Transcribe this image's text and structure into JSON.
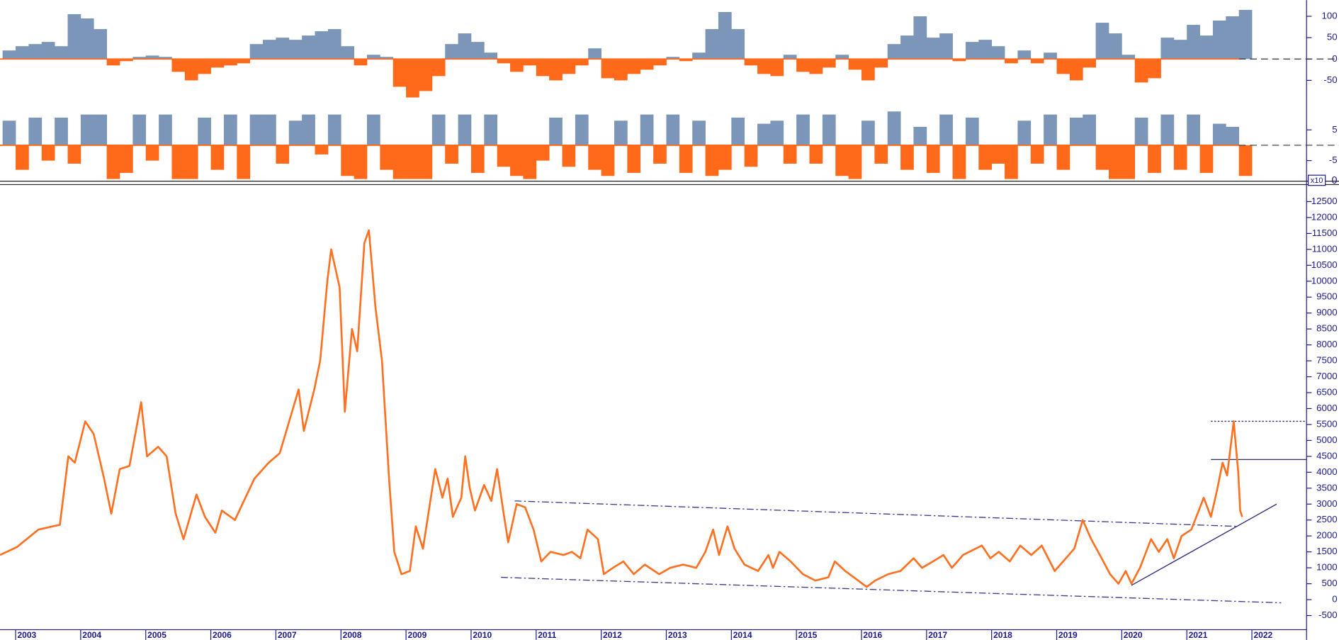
{
  "chart_data": [
    {
      "type": "bar",
      "xlim": [
        2002.76,
        2022.84
      ],
      "ylim": [
        -98,
        138
      ],
      "yticks": [
        100,
        50,
        0,
        -50
      ],
      "color_positive": "#7b96b8",
      "color_negative": "#ff6a1a",
      "x": [
        2002.8,
        2003,
        2003.2,
        2003.4,
        2003.6,
        2003.8,
        2004,
        2004.2,
        2004.4,
        2004.6,
        2004.8,
        2005,
        2005.2,
        2005.4,
        2005.6,
        2005.8,
        2006,
        2006.2,
        2006.4,
        2006.6,
        2006.8,
        2007,
        2007.2,
        2007.4,
        2007.6,
        2007.8,
        2008,
        2008.2,
        2008.4,
        2008.6,
        2008.8,
        2009,
        2009.2,
        2009.4,
        2009.6,
        2009.8,
        2010,
        2010.2,
        2010.4,
        2010.6,
        2010.8,
        2011,
        2011.2,
        2011.4,
        2011.6,
        2011.8,
        2012,
        2012.2,
        2012.4,
        2012.6,
        2012.8,
        2013,
        2013.2,
        2013.4,
        2013.6,
        2013.8,
        2014,
        2014.2,
        2014.4,
        2014.6,
        2014.8,
        2015,
        2015.2,
        2015.4,
        2015.6,
        2015.8,
        2016,
        2016.2,
        2016.4,
        2016.6,
        2016.8,
        2017,
        2017.2,
        2017.4,
        2017.6,
        2017.8,
        2018,
        2018.2,
        2018.4,
        2018.6,
        2018.8,
        2019,
        2019.2,
        2019.4,
        2019.6,
        2019.8,
        2020,
        2020.2,
        2020.4,
        2020.6,
        2020.8,
        2021,
        2021.2,
        2021.4,
        2021.6,
        2021.8
      ],
      "values": [
        20,
        30,
        35,
        40,
        30,
        105,
        95,
        70,
        -15,
        -5,
        5,
        8,
        5,
        -30,
        -50,
        -35,
        -20,
        -15,
        -10,
        35,
        45,
        50,
        45,
        55,
        65,
        70,
        30,
        -15,
        10,
        5,
        -65,
        -90,
        -75,
        -40,
        35,
        60,
        40,
        15,
        -10,
        -30,
        -15,
        -40,
        -50,
        -35,
        -15,
        25,
        -45,
        -50,
        -35,
        -25,
        -15,
        5,
        -5,
        15,
        70,
        110,
        70,
        -15,
        -35,
        -40,
        10,
        -30,
        -35,
        -20,
        10,
        -25,
        -50,
        -20,
        35,
        55,
        100,
        50,
        60,
        -5,
        40,
        45,
        30,
        -10,
        20,
        -10,
        15,
        -35,
        -50,
        -20,
        85,
        60,
        10,
        -55,
        -45,
        50,
        45,
        80,
        55,
        90,
        100,
        115
      ]
    },
    {
      "type": "bar",
      "xlim": [
        2002.76,
        2022.84
      ],
      "ylim": [
        -11.7,
        12.5
      ],
      "yticks": [
        5,
        -5
      ],
      "scale_note": [
        "x10",
        "0"
      ],
      "color_positive": "#7b96b8",
      "color_negative": "#ff6a1a",
      "x": [
        2002.8,
        2003,
        2003.2,
        2003.4,
        2003.6,
        2003.8,
        2004,
        2004.2,
        2004.4,
        2004.6,
        2004.8,
        2005,
        2005.2,
        2005.4,
        2005.6,
        2005.8,
        2006,
        2006.2,
        2006.4,
        2006.6,
        2006.8,
        2007,
        2007.2,
        2007.4,
        2007.6,
        2007.8,
        2008,
        2008.2,
        2008.4,
        2008.6,
        2008.8,
        2009,
        2009.2,
        2009.4,
        2009.6,
        2009.8,
        2010,
        2010.2,
        2010.4,
        2010.6,
        2010.8,
        2011,
        2011.2,
        2011.4,
        2011.6,
        2011.8,
        2012,
        2012.2,
        2012.4,
        2012.6,
        2012.8,
        2013,
        2013.2,
        2013.4,
        2013.6,
        2013.8,
        2014,
        2014.2,
        2014.4,
        2014.6,
        2014.8,
        2015,
        2015.2,
        2015.4,
        2015.6,
        2015.8,
        2016,
        2016.2,
        2016.4,
        2016.6,
        2016.8,
        2017,
        2017.2,
        2017.4,
        2017.6,
        2017.8,
        2018,
        2018.2,
        2018.4,
        2018.6,
        2018.8,
        2019,
        2019.2,
        2019.4,
        2019.6,
        2019.8,
        2020,
        2020.2,
        2020.4,
        2020.6,
        2020.8,
        2021,
        2021.2,
        2021.4,
        2021.6,
        2021.8
      ],
      "values": [
        8,
        -8,
        9,
        -5,
        9,
        -6,
        10,
        10,
        -11,
        -9,
        10,
        -5,
        10,
        -11,
        -11,
        9,
        -8,
        10,
        -11,
        10,
        10,
        -6,
        8,
        10,
        -3,
        10,
        -10,
        -11,
        10,
        -8,
        -11,
        -11,
        -11,
        10,
        -6,
        10,
        -9,
        10,
        -7,
        -10,
        -11,
        -5,
        9,
        -7,
        10,
        -8,
        -10,
        8,
        -9,
        10,
        -6,
        10,
        -9,
        8,
        -10,
        -8,
        9,
        -7,
        7,
        8,
        -6,
        10,
        -6,
        10,
        -10,
        -11,
        8,
        -6,
        11,
        -8,
        6,
        -9,
        10,
        -11,
        9,
        -8,
        -6,
        -11,
        8,
        -6,
        10,
        -8,
        9,
        10,
        -8,
        -11,
        -11,
        9,
        -9,
        10,
        -8,
        10,
        -9,
        7,
        6,
        -10
      ]
    },
    {
      "type": "line",
      "xlim": [
        2002.76,
        2022.84
      ],
      "ylim": [
        -890,
        12980
      ],
      "yticks": [
        -500,
        0,
        500,
        1000,
        1500,
        2000,
        2500,
        3000,
        3500,
        4000,
        4500,
        5000,
        5500,
        6000,
        6500,
        7000,
        7500,
        8000,
        8500,
        9000,
        9500,
        10000,
        10500,
        11000,
        11500,
        12000,
        12500
      ],
      "xticks": [
        2003,
        2004,
        2005,
        2006,
        2007,
        2008,
        2009,
        2010,
        2011,
        2012,
        2013,
        2014,
        2015,
        2016,
        2017,
        2018,
        2019,
        2020,
        2021,
        2022
      ],
      "color": "#ff7020",
      "x": [
        2002.76,
        2003.02,
        2003.35,
        2003.68,
        2003.81,
        2003.91,
        2004.07,
        2004.2,
        2004.36,
        2004.47,
        2004.6,
        2004.75,
        2004.93,
        2005.02,
        2005.19,
        2005.32,
        2005.46,
        2005.58,
        2005.78,
        2005.91,
        2006.07,
        2006.17,
        2006.37,
        2006.67,
        2006.89,
        2007.06,
        2007.35,
        2007.43,
        2007.59,
        2007.68,
        2007.79,
        2007.85,
        2007.98,
        2008.06,
        2008.17,
        2008.25,
        2008.36,
        2008.43,
        2008.53,
        2008.63,
        2008.74,
        2008.82,
        2008.93,
        2009.06,
        2009.15,
        2009.26,
        2009.45,
        2009.56,
        2009.64,
        2009.72,
        2009.85,
        2009.91,
        2009.98,
        2010.06,
        2010.2,
        2010.31,
        2010.4,
        2010.5,
        2010.57,
        2010.7,
        2010.83,
        2010.96,
        2011.08,
        2011.22,
        2011.42,
        2011.55,
        2011.68,
        2011.79,
        2011.95,
        2012.04,
        2012.18,
        2012.34,
        2012.5,
        2012.67,
        2012.89,
        2013.06,
        2013.26,
        2013.46,
        2013.6,
        2013.72,
        2013.81,
        2013.94,
        2014.05,
        2014.2,
        2014.41,
        2014.57,
        2014.64,
        2014.74,
        2014.91,
        2015.1,
        2015.29,
        2015.49,
        2015.59,
        2015.75,
        2015.95,
        2016.08,
        2016.21,
        2016.41,
        2016.6,
        2016.8,
        2016.93,
        2017.1,
        2017.26,
        2017.39,
        2017.56,
        2017.85,
        2017.98,
        2018.11,
        2018.28,
        2018.44,
        2018.61,
        2018.77,
        2018.97,
        2019.1,
        2019.27,
        2019.4,
        2019.53,
        2019.69,
        2019.82,
        2019.95,
        2020.06,
        2020.15,
        2020.28,
        2020.45,
        2020.57,
        2020.7,
        2020.8,
        2020.92,
        2021.07,
        2021.26,
        2021.37,
        2021.46,
        2021.55,
        2021.62,
        2021.72,
        2021.79,
        2021.82,
        2021.85
      ],
      "values": [
        1400,
        1650,
        2200,
        2350,
        4500,
        4300,
        5600,
        5200,
        3800,
        2700,
        4100,
        4200,
        6200,
        4500,
        4800,
        4500,
        2700,
        1900,
        3300,
        2600,
        2100,
        2800,
        2500,
        3800,
        4300,
        4600,
        6600,
        5300,
        6600,
        7500,
        10000,
        11000,
        9800,
        5900,
        8500,
        7800,
        11200,
        11600,
        9200,
        7500,
        3800,
        1500,
        800,
        900,
        2300,
        1600,
        4100,
        3200,
        3800,
        2600,
        3200,
        4500,
        3500,
        2800,
        3600,
        3100,
        4100,
        2700,
        1800,
        3000,
        2900,
        2200,
        1200,
        1500,
        1400,
        1500,
        1300,
        2200,
        1900,
        800,
        1000,
        1200,
        800,
        1100,
        800,
        1000,
        1100,
        1000,
        1500,
        2200,
        1400,
        2300,
        1600,
        1100,
        900,
        1400,
        1000,
        1500,
        1200,
        800,
        600,
        700,
        1200,
        900,
        600,
        400,
        600,
        800,
        900,
        1300,
        1000,
        1200,
        1400,
        1000,
        1400,
        1700,
        1300,
        1500,
        1200,
        1700,
        1400,
        1700,
        900,
        1200,
        1600,
        2500,
        1900,
        1300,
        800,
        500,
        900,
        500,
        1000,
        1900,
        1500,
        1900,
        1300,
        2000,
        2200,
        3200,
        2600,
        3400,
        4300,
        3900,
        5600,
        4000,
        2800,
        2600
      ],
      "annotations": [
        {
          "x": [
            2010.67,
            2021.79
          ],
          "y": [
            3100,
            2300
          ],
          "dash": "dashdot",
          "color": "#3a3a8a"
        },
        {
          "x": [
            2010.46,
            2022.45
          ],
          "y": [
            700,
            -100
          ],
          "dash": "dashdot",
          "color": "#3a3a8a"
        },
        {
          "x": [
            2020.15,
            2022.38
          ],
          "y": [
            450,
            3000
          ],
          "dash": "solid",
          "color": "#2a2a7a"
        },
        {
          "x": [
            2021.37,
            2022.84
          ],
          "y": [
            5600,
            5600
          ],
          "dash": "dotted",
          "color": "#2a2a7a"
        },
        {
          "x": [
            2021.37,
            2022.84
          ],
          "y": [
            4400,
            4400
          ],
          "dash": "solid",
          "color": "#2a2a7a"
        }
      ]
    }
  ]
}
